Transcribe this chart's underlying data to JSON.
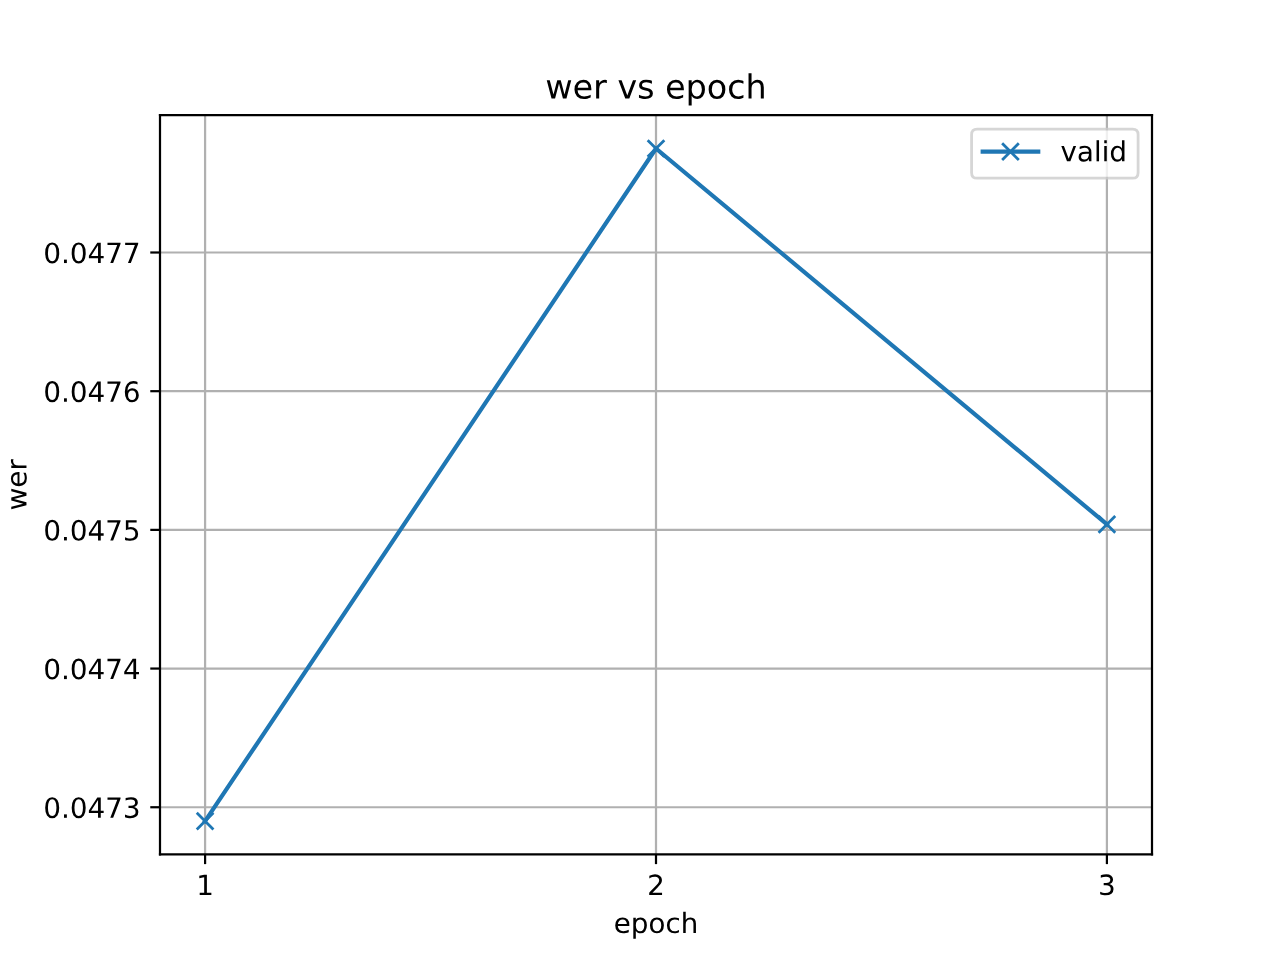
{
  "chart_data": {
    "type": "line",
    "title": "wer vs epoch",
    "xlabel": "epoch",
    "ylabel": "wer",
    "x": [
      1,
      2,
      3
    ],
    "series": [
      {
        "name": "valid",
        "color": "#1f77b4",
        "values": [
          0.04729,
          0.047775,
          0.047504
        ]
      }
    ],
    "xlim": [
      0.9,
      3.1
    ],
    "xticks": [
      1,
      2,
      3
    ],
    "ylim": [
      0.047266,
      0.047799
    ],
    "yticks": [
      0.0473,
      0.0474,
      0.0475,
      0.0476,
      0.0477
    ],
    "grid": true,
    "legend": "upper right",
    "marker": "cross",
    "line_style": "solid"
  }
}
